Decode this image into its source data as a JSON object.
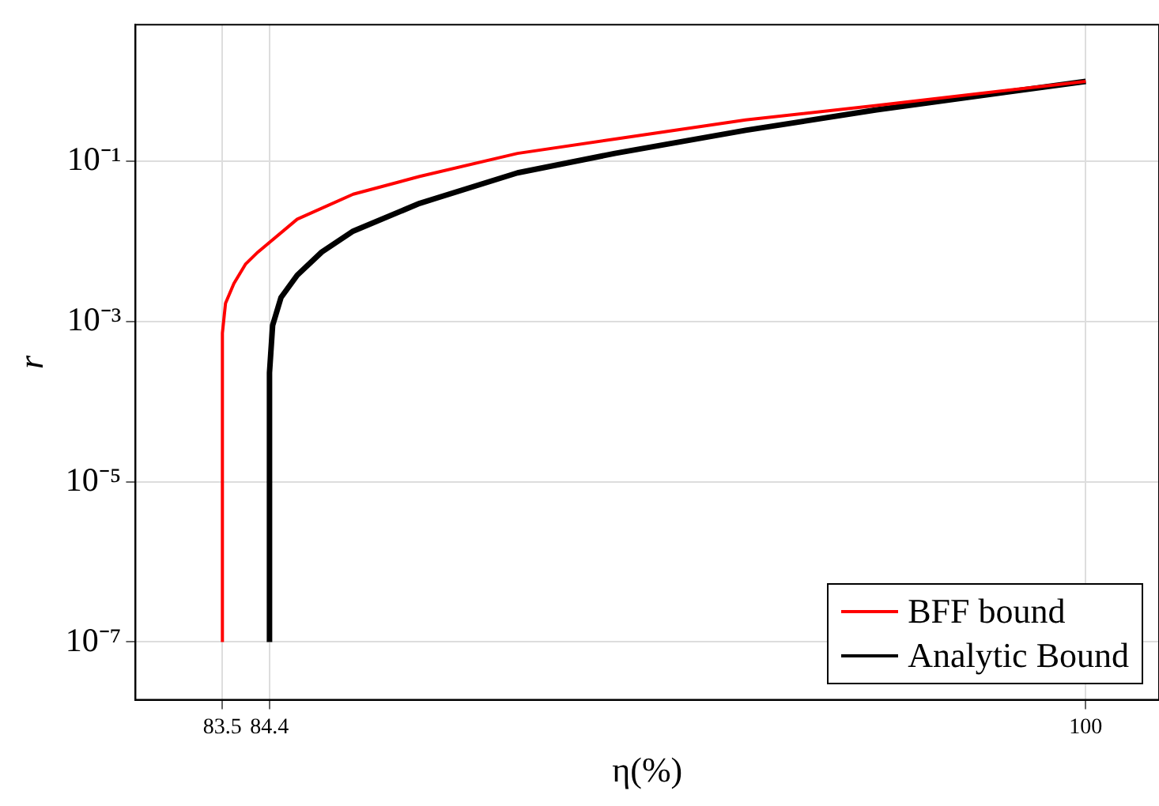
{
  "chart_data": {
    "type": "line",
    "xlabel": "η(%)",
    "ylabel": "r",
    "log": "y",
    "grid": true,
    "legend": "bottom right",
    "marker": "none",
    "line_style": "solid",
    "xlim": [
      81.84,
      101.4
    ],
    "xticks": [
      83.5,
      84.4,
      100
    ],
    "ylim": [
      1.9e-08,
      5.1
    ],
    "yticks": [
      {
        "value": 1e-07,
        "label": "10⁻⁷"
      },
      {
        "value": 1e-05,
        "label": "10⁻⁵"
      },
      {
        "value": 0.001,
        "label": "10⁻³"
      },
      {
        "value": 0.1,
        "label": "10⁻¹"
      }
    ],
    "series": [
      {
        "name": "BFF bound",
        "color": "#ff0000",
        "x": [
          83.5,
          83.5,
          83.56,
          83.72,
          83.94,
          84.18,
          84.93,
          86.0,
          87.27,
          89.14,
          91.0,
          93.5,
          96.0,
          100
        ],
        "values": [
          1e-07,
          0.00072,
          0.0017,
          0.003,
          0.0052,
          0.0074,
          0.019,
          0.039,
          0.065,
          0.126,
          0.19,
          0.33,
          0.5,
          1.0
        ]
      },
      {
        "name": "Analytic Bound",
        "color": "#000000",
        "x": [
          84.4,
          84.4,
          84.46,
          84.62,
          84.93,
          85.4,
          86.0,
          87.27,
          89.14,
          91.0,
          93.5,
          96.0,
          100
        ],
        "values": [
          1e-07,
          0.00023,
          0.0009,
          0.002,
          0.0038,
          0.0074,
          0.0135,
          0.03,
          0.072,
          0.126,
          0.245,
          0.44,
          1.0
        ]
      }
    ]
  }
}
